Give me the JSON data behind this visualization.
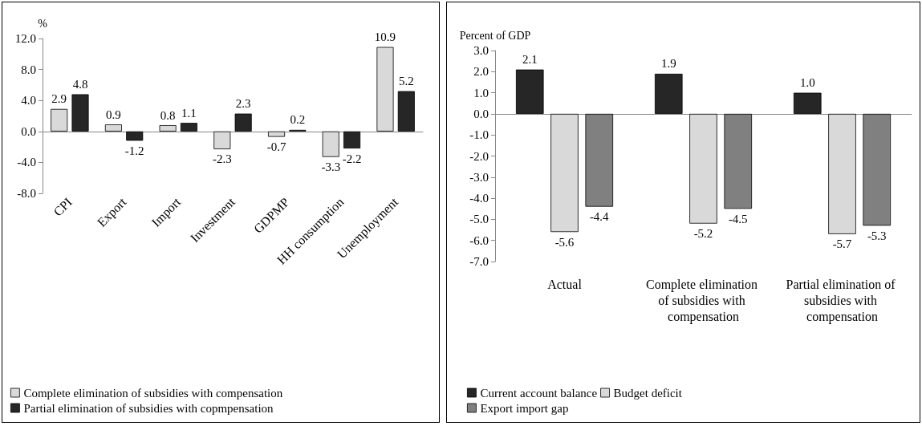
{
  "chart_data": [
    {
      "type": "bar",
      "ylabel": "%",
      "categories": [
        "CPI",
        "Export",
        "Import",
        "Investment",
        "GDPMP",
        "HH consumption",
        "Unemployment"
      ],
      "series": [
        {
          "name": "Complete elimination of subsidies with compensation",
          "color": "#d9d9d9",
          "values": [
            2.9,
            0.9,
            0.8,
            -2.3,
            -0.7,
            -3.3,
            10.9
          ]
        },
        {
          "name": "Partial elimination of subsidies with copmpensation",
          "color": "#262626",
          "values": [
            4.8,
            -1.2,
            1.1,
            2.3,
            0.2,
            -2.2,
            5.2
          ]
        }
      ],
      "ylim": [
        -8,
        12
      ],
      "yticks": [
        {
          "value": -8,
          "label": "-8.0"
        },
        {
          "value": -4,
          "label": "-4.0"
        },
        {
          "value": 0,
          "label": "0.0"
        },
        {
          "value": 4,
          "label": "4.0"
        },
        {
          "value": 8,
          "label": "8.0"
        },
        {
          "value": 12,
          "label": "12.0"
        }
      ],
      "data_labels": true,
      "legend": "bottom"
    },
    {
      "type": "bar",
      "ylabel": "Percent of GDP",
      "categories": [
        "Actual",
        "Complete elimination of subsidies with compensation",
        "Partial elimination of subsidies with compensation"
      ],
      "series": [
        {
          "name": "Current account balance",
          "color": "#262626",
          "values": [
            2.1,
            1.9,
            1.0
          ],
          "value_labels": [
            "2.1",
            "1.9",
            "1.0"
          ]
        },
        {
          "name": "Budget deficit",
          "color": "#d9d9d9",
          "values": [
            -5.6,
            -5.2,
            -5.7
          ],
          "value_labels": [
            "-5.6",
            "-5.2",
            "-5.7"
          ]
        },
        {
          "name": "Export import gap",
          "color": "#808080",
          "values": [
            -4.4,
            -4.5,
            -5.3
          ],
          "value_labels": [
            "-4.4",
            "-4.5",
            "-5.3"
          ]
        }
      ],
      "ylim": [
        -7,
        3
      ],
      "yticks": [
        {
          "value": -7,
          "label": "-7.0"
        },
        {
          "value": -6,
          "label": "-6.0"
        },
        {
          "value": -5,
          "label": "-5.0"
        },
        {
          "value": -4,
          "label": "-4.0"
        },
        {
          "value": -3,
          "label": "-3.0"
        },
        {
          "value": -2,
          "label": "-2.0"
        },
        {
          "value": -1,
          "label": "-1.0"
        },
        {
          "value": 0,
          "label": "0.0"
        },
        {
          "value": 1,
          "label": "1.0"
        },
        {
          "value": 2,
          "label": "2.0"
        },
        {
          "value": 3,
          "label": "3.0"
        }
      ],
      "legend": "bottom"
    }
  ]
}
